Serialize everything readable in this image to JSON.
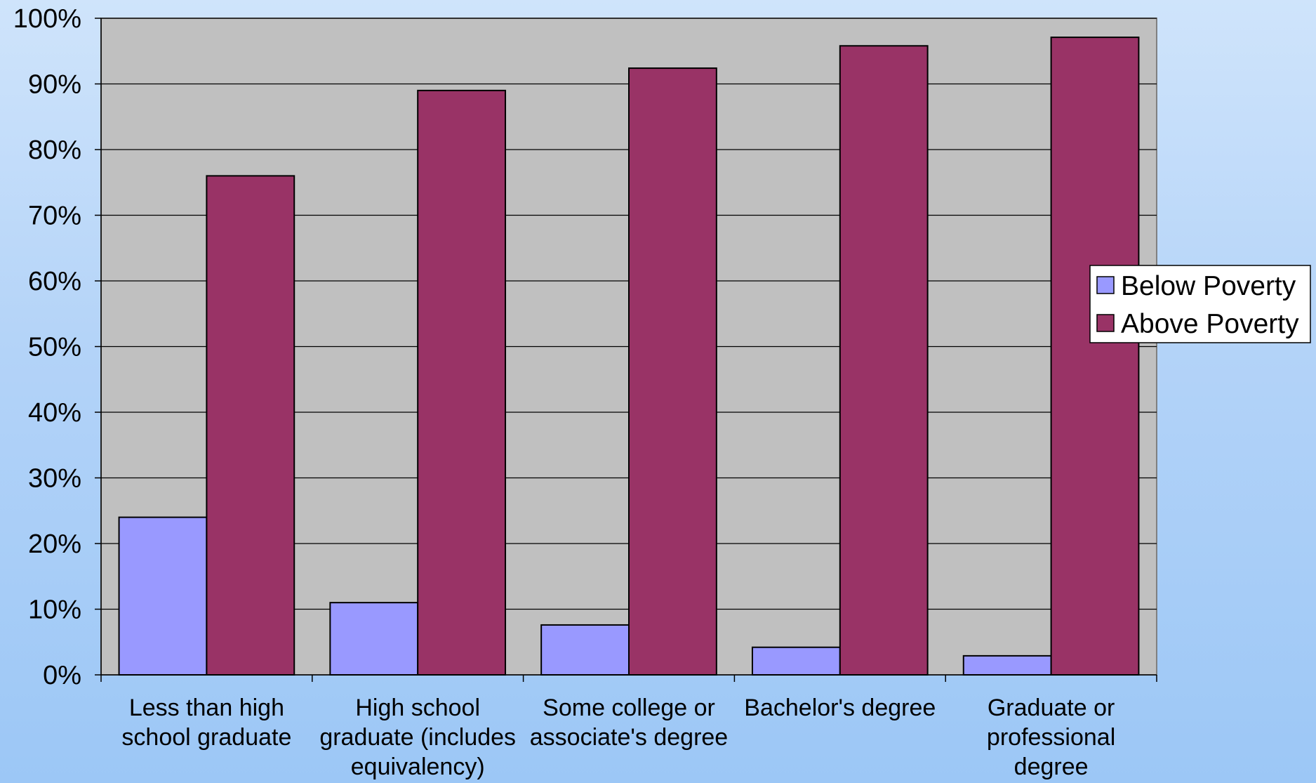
{
  "chart_data": {
    "type": "bar",
    "categories": [
      [
        "Less than high",
        "school graduate"
      ],
      [
        "High school",
        "graduate (includes",
        "equivalency)"
      ],
      [
        "Some college or",
        "associate's degree"
      ],
      [
        "Bachelor's degree"
      ],
      [
        "Graduate or",
        "professional",
        "degree"
      ]
    ],
    "series": [
      {
        "name": "Below Poverty",
        "color": "#9999ff",
        "values": [
          24,
          11,
          7.6,
          4.2,
          2.9
        ]
      },
      {
        "name": "Above Poverty",
        "color": "#993366",
        "values": [
          76,
          89,
          92.4,
          95.8,
          97.1
        ]
      }
    ],
    "y_ticks": [
      "0%",
      "10%",
      "20%",
      "30%",
      "40%",
      "50%",
      "60%",
      "70%",
      "80%",
      "90%",
      "100%"
    ],
    "ylim": [
      0,
      100
    ],
    "grid": true,
    "plot_background": "#c0c0c0",
    "legend_position": "right"
  }
}
